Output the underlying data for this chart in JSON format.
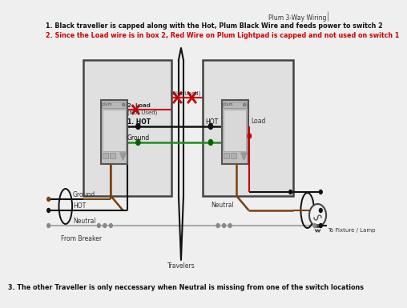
{
  "title": "Plum 3-Way Wiring",
  "note1": "1. Black traveller is capped along with the Hot, Plum Black Wire and feeds power to switch 2",
  "note2": "2. Since the Load wire is in box 2, Red Wire on Plum Lightpad is capped and not used on switch 1",
  "note3": "3. The other Traveller is only neccessary when Neutral is missing from one of the switch locations",
  "bg_color": "#efefef",
  "wire_black": "#111111",
  "wire_red": "#cc0000",
  "wire_green": "#228B22",
  "wire_brown": "#7a4010",
  "wire_gray": "#aaaaaa",
  "from_breaker": "From Breaker",
  "travelers": "Travelers",
  "to_fixture": "To Fixture / Lamp",
  "label_ground": "Ground",
  "label_hot": "HOT",
  "label_neutral": "Neutral",
  "label_load": "Load",
  "label_neutral2": "Neutral",
  "label_not_used": "(Not Used)",
  "label_2load": "2. Load",
  "label_not_used2": "(Not Used)",
  "label_1hot": "1. HOT",
  "label_hot2": "HOT"
}
